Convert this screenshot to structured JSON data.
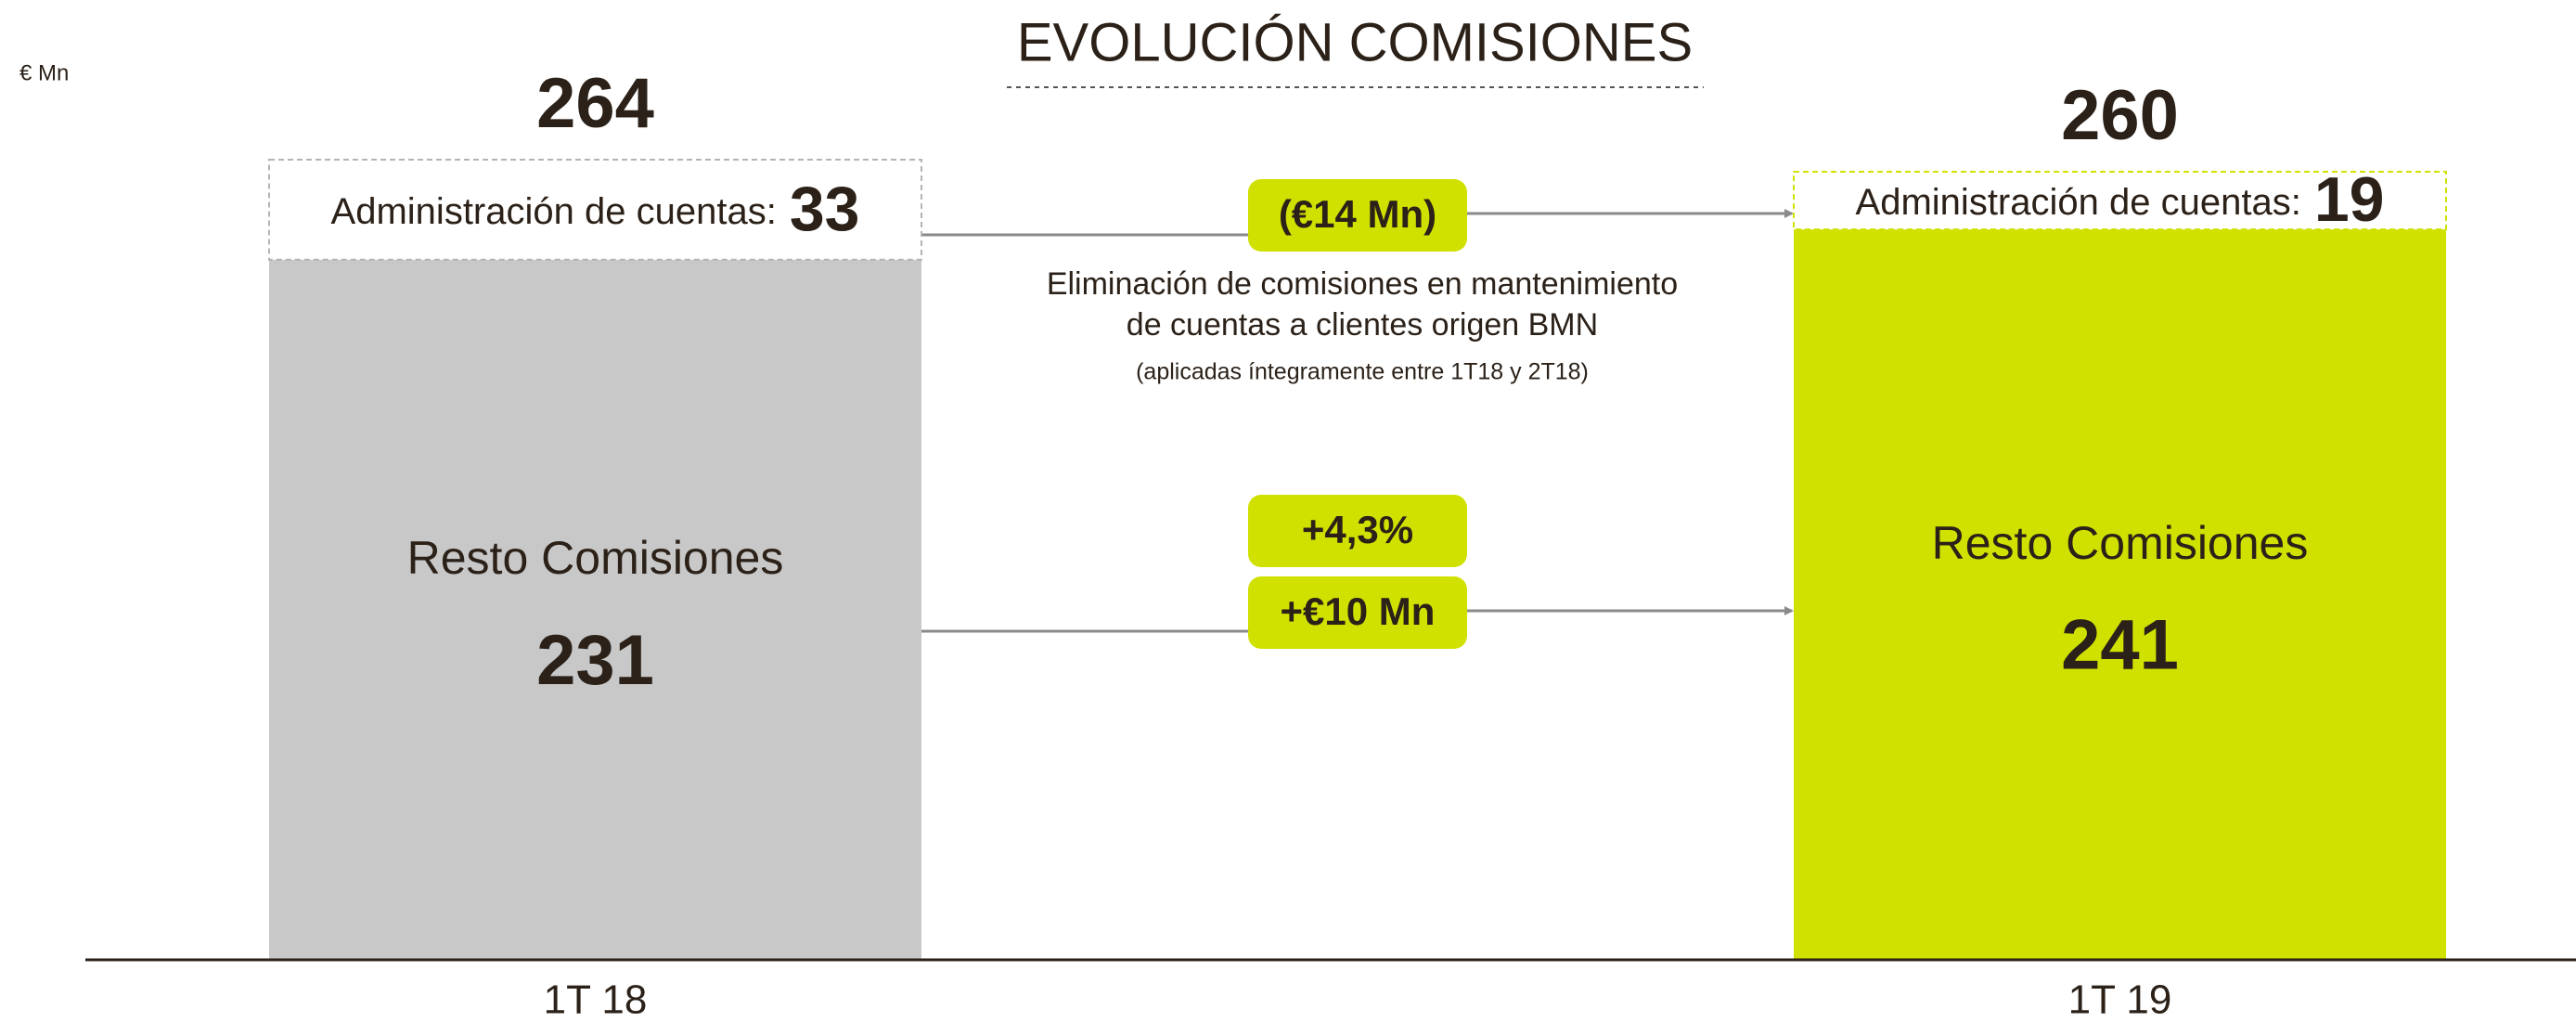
{
  "unit_label": "€ Mn",
  "chart_data": {
    "type": "bar",
    "stacked": true,
    "title": "EVOLUCIÓN COMISIONES",
    "categories": [
      "1T 18",
      "1T 19"
    ],
    "series": [
      {
        "name": "Resto Comisiones",
        "colors": [
          "#c8c8c8",
          "#d0e100"
        ],
        "values": [
          231,
          241
        ]
      },
      {
        "name": "Administración de cuentas:",
        "colors": [
          "#ffffff",
          "#ffffff"
        ],
        "border_colors": [
          "#b4b4b4",
          "#d0e100"
        ],
        "values": [
          33,
          19
        ]
      }
    ],
    "totals": [
      264,
      260
    ],
    "annotations": [
      {
        "text": "(€14 Mn)"
      },
      {
        "text": "Eliminación de comisiones en mantenimiento"
      },
      {
        "text": "de cuentas a clientes origen BMN"
      },
      {
        "text": "(aplicadas íntegramente entre 1T18 y 2T18)"
      },
      {
        "text": "+4,3%"
      },
      {
        "text": "+€10 Mn"
      }
    ]
  }
}
